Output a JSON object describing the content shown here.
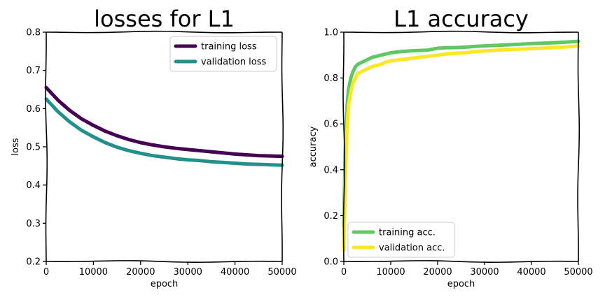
{
  "chart_data": [
    {
      "type": "line",
      "title": "losses for L1",
      "xlabel": "epoch",
      "ylabel": "loss",
      "xlim": [
        0,
        50000
      ],
      "ylim": [
        0.2,
        0.8
      ],
      "xticks": [
        "0",
        "10000",
        "20000",
        "30000",
        "40000",
        "50000"
      ],
      "yticks": [
        "0.2",
        "0.3",
        "0.4",
        "0.5",
        "0.6",
        "0.7",
        "0.8"
      ],
      "grid": false,
      "legend_position": "top-right",
      "x": [
        0,
        2500,
        5000,
        7500,
        10000,
        12500,
        15000,
        17500,
        20000,
        22500,
        25000,
        27500,
        30000,
        32500,
        35000,
        37500,
        40000,
        42500,
        45000,
        47500,
        50000
      ],
      "series": [
        {
          "name": "training loss",
          "color": "#440154",
          "values": [
            0.655,
            0.622,
            0.595,
            0.573,
            0.556,
            0.541,
            0.529,
            0.519,
            0.511,
            0.505,
            0.5,
            0.496,
            0.493,
            0.49,
            0.487,
            0.484,
            0.481,
            0.479,
            0.477,
            0.476,
            0.475
          ]
        },
        {
          "name": "validation loss",
          "color": "#21918c",
          "values": [
            0.625,
            0.592,
            0.565,
            0.543,
            0.526,
            0.511,
            0.499,
            0.49,
            0.483,
            0.477,
            0.473,
            0.469,
            0.466,
            0.464,
            0.461,
            0.459,
            0.457,
            0.455,
            0.454,
            0.453,
            0.452
          ]
        }
      ]
    },
    {
      "type": "line",
      "title": "L1 accuracy",
      "xlabel": "epoch",
      "ylabel": "accuracy",
      "xlim": [
        0,
        50000
      ],
      "ylim": [
        0.0,
        1.0
      ],
      "xticks": [
        "0",
        "10000",
        "20000",
        "30000",
        "40000",
        "50000"
      ],
      "yticks": [
        "0.0",
        "0.2",
        "0.4",
        "0.6",
        "0.8",
        "1.0"
      ],
      "grid": false,
      "legend_position": "bottom-left",
      "x": [
        0,
        300,
        700,
        1000,
        1500,
        2000,
        2500,
        3000,
        4000,
        5000,
        6000,
        7000,
        8000,
        9000,
        10000,
        12000,
        14000,
        16000,
        18000,
        20000,
        22000,
        24000,
        26000,
        28000,
        30000,
        33000,
        36000,
        40000,
        44000,
        47000,
        50000
      ],
      "series": [
        {
          "name": "training acc.",
          "color": "#5ec962",
          "values": [
            0.15,
            0.5,
            0.68,
            0.75,
            0.8,
            0.83,
            0.85,
            0.86,
            0.87,
            0.88,
            0.89,
            0.895,
            0.9,
            0.905,
            0.91,
            0.915,
            0.918,
            0.92,
            0.922,
            0.93,
            0.932,
            0.933,
            0.935,
            0.938,
            0.94,
            0.943,
            0.946,
            0.95,
            0.953,
            0.956,
            0.96
          ]
        },
        {
          "name": "validation acc.",
          "color": "#fde725",
          "values": [
            0.05,
            0.35,
            0.58,
            0.68,
            0.74,
            0.78,
            0.8,
            0.82,
            0.83,
            0.84,
            0.85,
            0.855,
            0.86,
            0.87,
            0.875,
            0.88,
            0.885,
            0.89,
            0.895,
            0.9,
            0.905,
            0.908,
            0.91,
            0.915,
            0.918,
            0.922,
            0.925,
            0.928,
            0.932,
            0.935,
            0.94
          ]
        }
      ]
    }
  ]
}
